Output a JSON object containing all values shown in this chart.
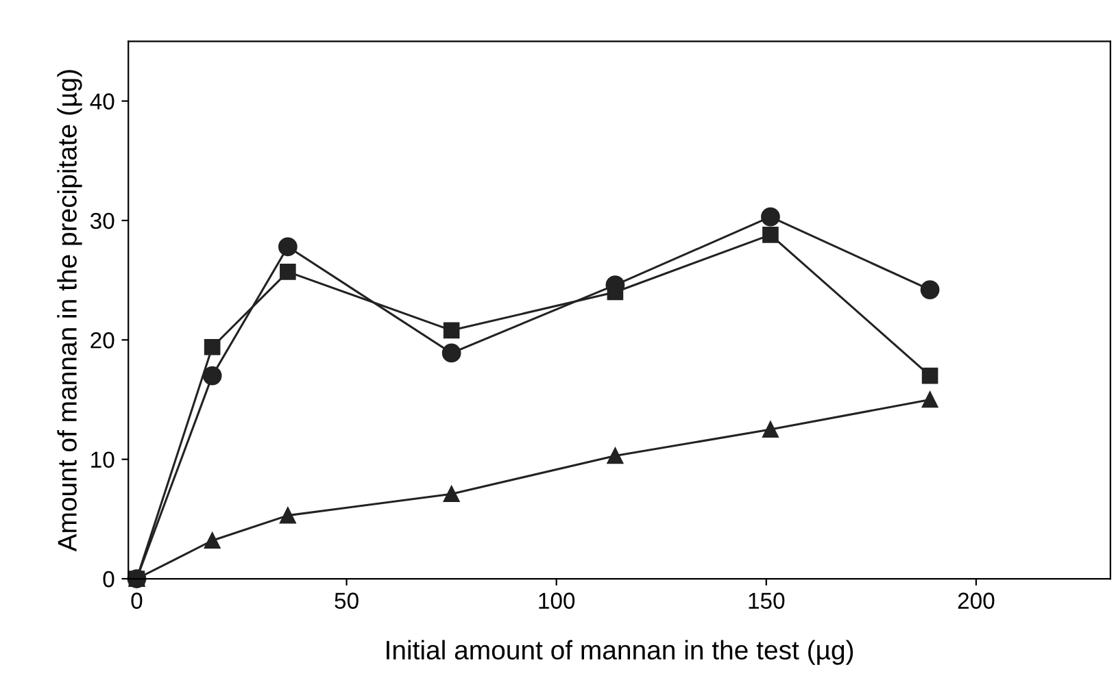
{
  "chart_data": {
    "type": "line",
    "xlabel": "Initial amount of mannan in the test (µg)",
    "ylabel": "Amount of mannan in the precipitate (µg)",
    "xlim": [
      -2,
      232
    ],
    "ylim": [
      0,
      45
    ],
    "xticks": [
      0,
      50,
      100,
      150,
      200
    ],
    "yticks": [
      0,
      10,
      20,
      30,
      40
    ],
    "grid": false,
    "legend": false,
    "x": [
      0,
      18,
      36,
      75,
      114,
      151,
      189
    ],
    "series": [
      {
        "color": "#222222",
        "marker": "circle",
        "values": [
          0,
          17,
          27.8,
          18.9,
          24.6,
          30.3,
          24.2
        ]
      },
      {
        "color": "#222222",
        "marker": "square",
        "values": [
          0,
          19.4,
          25.7,
          20.8,
          24,
          28.8,
          17
        ]
      },
      {
        "color": "#222222",
        "marker": "triangle",
        "values": [
          0,
          3.2,
          5.3,
          7.1,
          10.3,
          12.5,
          15
        ]
      }
    ]
  }
}
